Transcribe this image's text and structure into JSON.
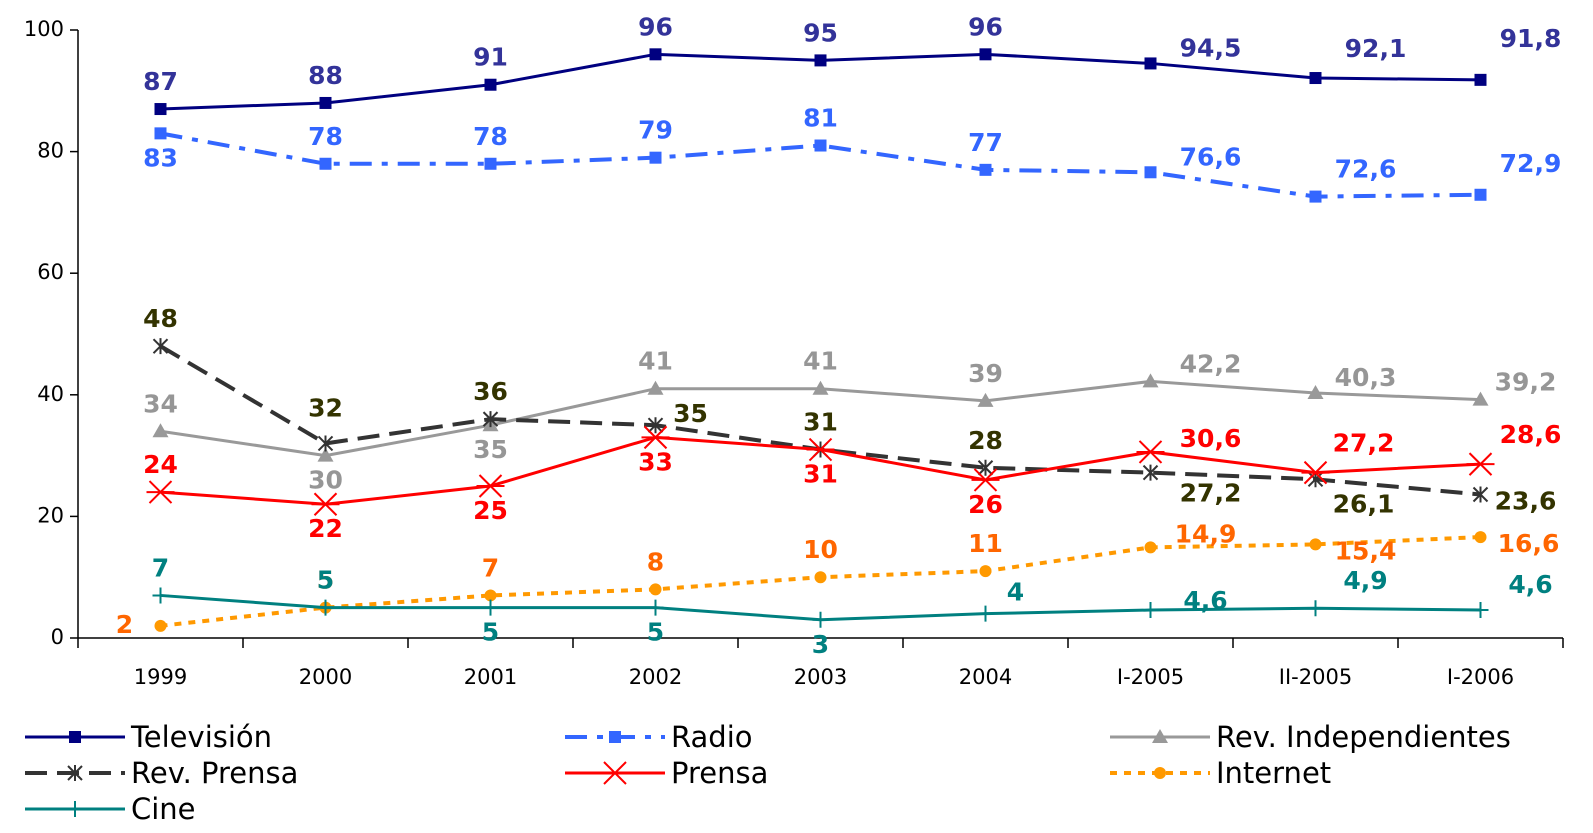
{
  "chart_data": {
    "type": "line",
    "categories": [
      "1999",
      "2000",
      "2001",
      "2002",
      "2003",
      "2004",
      "I-2005",
      "II-2005",
      "I-2006"
    ],
    "ylim": [
      0,
      100
    ],
    "yticks": [
      0,
      20,
      40,
      60,
      80,
      100
    ],
    "grid": false,
    "legend": "bottom",
    "series": [
      {
        "name": "Televisión",
        "color": "#000080",
        "label_color": "#333399",
        "marker": "square",
        "dash": "none",
        "values": [
          87,
          88,
          91,
          96,
          95,
          96,
          94.5,
          92.1,
          91.8
        ],
        "value_labels": [
          "87",
          "88",
          "91",
          "96",
          "95",
          "96",
          "94,5",
          "92,1",
          "91,8"
        ]
      },
      {
        "name": "Radio",
        "color": "#3366ff",
        "label_color": "#3366ff",
        "marker": "square",
        "dash": "22,10,6,10",
        "values": [
          83,
          78,
          78,
          79,
          81,
          77,
          76.6,
          72.6,
          72.9
        ],
        "value_labels": [
          "83",
          "78",
          "78",
          "79",
          "81",
          "77",
          "76,6",
          "72,6",
          "72,9"
        ]
      },
      {
        "name": "Rev. Independientes",
        "color": "#999999",
        "label_color": "#969696",
        "marker": "triangle",
        "dash": "none",
        "values": [
          34,
          30,
          35,
          41,
          41,
          39,
          42.2,
          40.3,
          39.2
        ],
        "value_labels": [
          "34",
          "30",
          "35",
          "41",
          "41",
          "39",
          "42,2",
          "40,3",
          "39,2"
        ]
      },
      {
        "name": "Rev. Prensa",
        "color": "#333333",
        "label_color": "#333300",
        "marker": "asterisk",
        "dash": "22,10",
        "values": [
          48,
          32,
          36,
          35,
          31,
          28,
          27.2,
          26.1,
          23.6
        ],
        "value_labels": [
          "48",
          "32",
          "36",
          "35",
          "31",
          "28",
          "27,2",
          "26,1",
          "23,6"
        ]
      },
      {
        "name": "Prensa",
        "color": "#ff0000",
        "label_color": "#ff0000",
        "marker": "star",
        "dash": "none",
        "values": [
          24,
          22,
          25,
          33,
          31,
          26,
          30.6,
          27.2,
          28.6
        ],
        "value_labels": [
          "24",
          "22",
          "25",
          "33",
          "31",
          "26",
          "30,6",
          "27,2",
          "28,6"
        ]
      },
      {
        "name": "Internet",
        "color": "#ff9900",
        "label_color": "#ff6600",
        "marker": "circle",
        "dash": "7,7",
        "values": [
          2,
          5,
          7,
          8,
          10,
          11,
          14.9,
          15.4,
          16.6
        ],
        "value_labels": [
          "2",
          "5",
          "7",
          "8",
          "10",
          "11",
          "14,9",
          "15,4",
          "16,6"
        ]
      },
      {
        "name": "Cine",
        "color": "#008080",
        "label_color": "#008080",
        "marker": "plus",
        "dash": "none",
        "values": [
          7,
          5,
          5,
          5,
          3,
          4,
          4.6,
          4.9,
          4.6
        ],
        "value_labels": [
          "7",
          "5",
          "5",
          "5",
          "3",
          "4",
          "4,6",
          "4,9",
          "4,6"
        ]
      }
    ]
  }
}
